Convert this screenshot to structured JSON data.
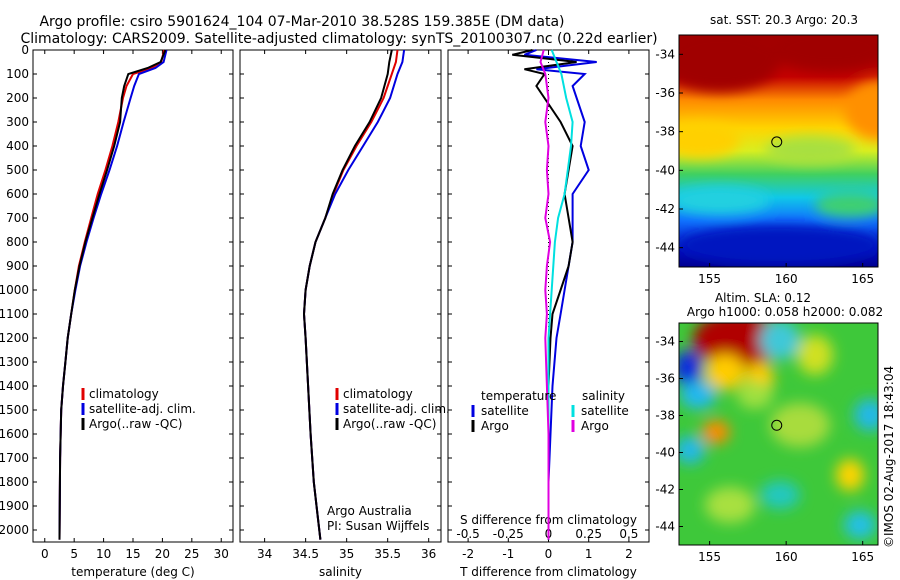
{
  "title": {
    "line1": "Argo profile: csiro 5901624_104 07-Mar-2010 38.528S 159.385E (DM data)",
    "line2": "Climatology: CARS2009. Satellite-adjusted climatology: synTS_20100307.nc (0.22d earlier)"
  },
  "colors": {
    "climatology": "#e00000",
    "satellite": "#0000e0",
    "argo": "#000000",
    "sat_salinity": "#00e0e0",
    "argo_salinity": "#e000e0"
  },
  "chart_data": [
    {
      "type": "line",
      "name": "temperature",
      "xlabel": "temperature (deg C)",
      "ylabel": "",
      "xlim": [
        -2,
        32
      ],
      "ylim": [
        2050,
        0
      ],
      "xticks": [
        "0",
        "5",
        "10",
        "15",
        "20",
        "25",
        "30"
      ],
      "xtick_values": [
        0,
        5,
        10,
        15,
        20,
        25,
        30
      ],
      "yticks": [
        "0",
        "100",
        "200",
        "300",
        "400",
        "500",
        "600",
        "700",
        "800",
        "900",
        "1000",
        "1100",
        "1200",
        "1300",
        "1400",
        "1500",
        "1600",
        "1700",
        "1800",
        "1900",
        "2000"
      ],
      "ytick_values": [
        0,
        100,
        200,
        300,
        400,
        500,
        600,
        700,
        800,
        900,
        1000,
        1100,
        1200,
        1300,
        1400,
        1500,
        1600,
        1700,
        1800,
        1900,
        2000
      ],
      "legend": [
        "climatology",
        "satellite-adj. clim.",
        "Argo(..raw -QC)"
      ],
      "series": [
        {
          "name": "climatology",
          "color": "#e00000",
          "x": [
            20.3,
            19.8,
            18.2,
            15.0,
            13.9,
            13.3,
            12.5,
            11.5,
            10.3,
            9.0,
            7.9,
            6.8,
            5.8,
            5.1,
            4.5,
            3.9,
            3.5,
            3.1,
            2.8,
            2.6,
            2.5
          ],
          "y": [
            0,
            50,
            75,
            100,
            150,
            200,
            300,
            400,
            500,
            600,
            700,
            800,
            900,
            1000,
            1100,
            1200,
            1300,
            1400,
            1500,
            1700,
            2040
          ]
        },
        {
          "name": "satellite-adj. clim.",
          "color": "#0000e0",
          "x": [
            20.7,
            20.2,
            18.8,
            16.0,
            15.2,
            14.6,
            13.4,
            12.3,
            11.0,
            9.6,
            8.3,
            7.1,
            6.0,
            5.2,
            4.5,
            3.9,
            3.5,
            3.1,
            2.8,
            2.6,
            2.5
          ],
          "y": [
            0,
            50,
            75,
            100,
            150,
            200,
            300,
            400,
            500,
            600,
            700,
            800,
            900,
            1000,
            1100,
            1200,
            1300,
            1400,
            1500,
            1700,
            2040
          ]
        },
        {
          "name": "Argo(..raw -QC)",
          "color": "#000000",
          "x": [
            20.5,
            19.7,
            17.5,
            14.2,
            13.5,
            13.1,
            12.8,
            11.8,
            10.6,
            9.3,
            8.1,
            6.9,
            5.9,
            5.1,
            4.5,
            3.9,
            3.5,
            3.1,
            2.8,
            2.6,
            2.5
          ],
          "y": [
            0,
            50,
            75,
            100,
            150,
            200,
            300,
            400,
            500,
            600,
            700,
            800,
            900,
            1000,
            1100,
            1200,
            1300,
            1400,
            1500,
            1700,
            2040
          ]
        }
      ]
    },
    {
      "type": "line",
      "name": "salinity",
      "xlabel": "salinity",
      "xlim": [
        33.7,
        36.15
      ],
      "ylim": [
        2050,
        0
      ],
      "xticks": [
        "34",
        "34.5",
        "35",
        "35.5",
        "36"
      ],
      "xtick_values": [
        34,
        34.5,
        35,
        35.5,
        36
      ],
      "legend": [
        "climatology",
        "satellite-adj. clim.",
        "Argo(..raw -QC)"
      ],
      "annotation": [
        "Argo Australia",
        "PI: Susan Wijffels"
      ],
      "series": [
        {
          "name": "climatology",
          "color": "#e00000",
          "x": [
            35.62,
            35.6,
            35.55,
            35.45,
            35.3,
            35.12,
            34.96,
            34.84,
            34.74,
            34.62,
            34.55,
            34.5,
            34.48,
            34.5,
            34.53,
            34.56,
            34.6,
            34.65,
            34.68
          ],
          "y": [
            0,
            50,
            100,
            200,
            300,
            400,
            500,
            600,
            700,
            800,
            900,
            1000,
            1100,
            1200,
            1400,
            1600,
            1800,
            1950,
            2040
          ]
        },
        {
          "name": "satellite-adj. clim.",
          "color": "#0000e0",
          "x": [
            35.7,
            35.68,
            35.62,
            35.53,
            35.38,
            35.2,
            35.02,
            34.86,
            34.74,
            34.62,
            34.55,
            34.5,
            34.48,
            34.5,
            34.53,
            34.56,
            34.6,
            34.65,
            34.68
          ],
          "y": [
            0,
            50,
            100,
            200,
            300,
            400,
            500,
            600,
            700,
            800,
            900,
            1000,
            1100,
            1200,
            1400,
            1600,
            1800,
            1950,
            2040
          ]
        },
        {
          "name": "Argo(..raw -QC)",
          "color": "#000000",
          "x": [
            35.55,
            35.52,
            35.5,
            35.42,
            35.28,
            35.1,
            34.95,
            34.83,
            34.74,
            34.62,
            34.55,
            34.5,
            34.48,
            34.5,
            34.53,
            34.56,
            34.6,
            34.65,
            34.68
          ],
          "y": [
            0,
            50,
            100,
            200,
            300,
            400,
            500,
            600,
            700,
            800,
            900,
            1000,
            1100,
            1200,
            1400,
            1600,
            1800,
            1950,
            2040
          ]
        }
      ]
    },
    {
      "type": "line",
      "name": "differences",
      "xlabel": "T difference from climatology",
      "top_label": "S difference from climatology",
      "xlim": [
        -2.5,
        2.5
      ],
      "ylim": [
        2050,
        0
      ],
      "xticks": [
        "-2",
        "-1",
        "0",
        "1",
        "2"
      ],
      "xtick_values": [
        -2,
        -1,
        0,
        1,
        2
      ],
      "top_ticks": [
        "-0.5",
        "-0.25",
        "0",
        "0.25",
        "0.5"
      ],
      "top_tick_values": [
        -0.5,
        -0.25,
        0,
        0.25,
        0.5
      ],
      "legend_headers": [
        "temperature",
        "salinity"
      ],
      "legend": [
        "satellite",
        "Argo",
        "satellite",
        "Argo"
      ],
      "series": [
        {
          "name": "temperature satellite",
          "color": "#0000e0",
          "units": "T",
          "x": [
            -0.3,
            -0.6,
            1.2,
            -0.3,
            0.9,
            0.6,
            0.9,
            0.8,
            1.0,
            0.6,
            0.6,
            0.6,
            0.5,
            0.4,
            0.3,
            0.2,
            0.1,
            0.05,
            0.0,
            0.0
          ],
          "y": [
            0,
            20,
            50,
            80,
            100,
            150,
            300,
            400,
            500,
            600,
            700,
            800,
            900,
            1000,
            1100,
            1200,
            1400,
            1600,
            1800,
            2040
          ]
        },
        {
          "name": "temperature Argo",
          "color": "#000000",
          "units": "T",
          "x": [
            -0.4,
            -0.9,
            0.7,
            -0.6,
            -0.1,
            -0.3,
            0.3,
            0.6,
            0.5,
            0.4,
            0.5,
            0.6,
            0.5,
            0.3,
            0.1,
            0.05,
            0.0,
            0.0,
            0.0,
            0.0
          ],
          "y": [
            0,
            20,
            50,
            80,
            100,
            150,
            300,
            400,
            500,
            600,
            700,
            800,
            900,
            1000,
            1100,
            1200,
            1400,
            1600,
            1800,
            2040
          ]
        },
        {
          "name": "salinity satellite",
          "color": "#00e0e0",
          "units": "S",
          "x": [
            0.02,
            0.05,
            0.08,
            0.11,
            0.15,
            0.14,
            0.12,
            0.1,
            0.06,
            0.04,
            0.03,
            0.02,
            0.01,
            0.0,
            0.0,
            0.0,
            0.0,
            0.0
          ],
          "y": [
            0,
            50,
            100,
            200,
            300,
            400,
            500,
            600,
            700,
            800,
            900,
            1000,
            1100,
            1200,
            1400,
            1600,
            1800,
            2040
          ]
        },
        {
          "name": "salinity Argo",
          "color": "#e000e0",
          "units": "S",
          "x": [
            -0.03,
            -0.05,
            -0.02,
            0.0,
            -0.02,
            0.0,
            -0.01,
            0.0,
            -0.02,
            0.01,
            -0.01,
            -0.02,
            -0.01,
            -0.02,
            -0.01,
            0.0,
            0.0,
            0.0
          ],
          "y": [
            0,
            50,
            100,
            200,
            300,
            400,
            500,
            600,
            700,
            800,
            900,
            1000,
            1100,
            1200,
            1400,
            1600,
            1800,
            2040
          ]
        }
      ]
    },
    {
      "type": "heatmap",
      "name": "sst_map",
      "title": "sat. SST: 20.3 Argo: 20.3",
      "xlim": [
        153,
        166
      ],
      "ylim": [
        -45,
        -33
      ],
      "xticks": [
        "155",
        "160",
        "165"
      ],
      "xtick_values": [
        155,
        160,
        165
      ],
      "yticks": [
        "-34",
        "-36",
        "-38",
        "-40",
        "-42",
        "-44"
      ],
      "ytick_values": [
        -34,
        -36,
        -38,
        -40,
        -42,
        -44
      ],
      "marker": {
        "lon": 159.385,
        "lat": -38.528
      }
    },
    {
      "type": "heatmap",
      "name": "sla_map",
      "title_line1": "Altim. SLA: 0.12",
      "title_line2": "Argo h1000: 0.058 h2000: 0.082",
      "xlim": [
        153,
        166
      ],
      "ylim": [
        -45,
        -33
      ],
      "xticks": [
        "155",
        "160",
        "165"
      ],
      "xtick_values": [
        155,
        160,
        165
      ],
      "yticks": [
        "-34",
        "-36",
        "-38",
        "-40",
        "-42",
        "-44"
      ],
      "ytick_values": [
        -34,
        -36,
        -38,
        -40,
        -42,
        -44
      ],
      "marker": {
        "lon": 159.385,
        "lat": -38.528
      }
    }
  ],
  "footer": {
    "stamp": "©IMOS 02-Aug-2017 18:43:04"
  }
}
